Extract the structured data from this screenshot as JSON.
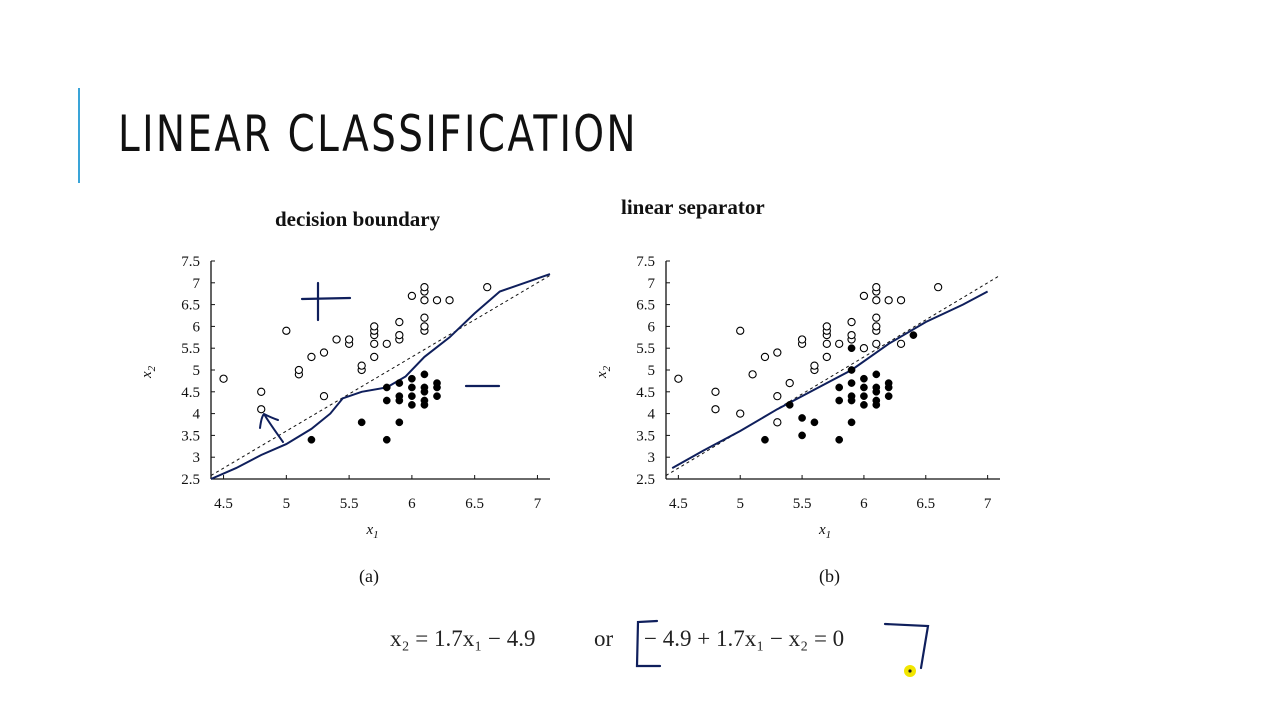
{
  "slide": {
    "title": "LINEAR CLASSIFICATION",
    "accent_color": "#3aa4d8",
    "ink_color": "#0f1f5c",
    "cursor_color": "#f2e600"
  },
  "chart_data": [
    {
      "type": "scatter",
      "title": "decision boundary",
      "caption": "(a)",
      "xlabel": "x1",
      "ylabel": "x2",
      "xlim": [
        4.4,
        7.1
      ],
      "ylim": [
        2.5,
        7.5
      ],
      "xticks": [
        "4.5",
        "5",
        "5.5",
        "6",
        "6.5",
        "7"
      ],
      "yticks": [
        "2.5",
        "3",
        "3.5",
        "4",
        "4.5",
        "5",
        "5.5",
        "6",
        "6.5",
        "7",
        "7.5"
      ],
      "grid": false,
      "series": [
        {
          "marker": "open-circle",
          "points": [
            [
              4.5,
              4.8
            ],
            [
              4.8,
              4.5
            ],
            [
              4.8,
              4.1
            ],
            [
              5.0,
              5.9
            ],
            [
              5.1,
              4.9
            ],
            [
              5.1,
              5.0
            ],
            [
              5.2,
              5.3
            ],
            [
              5.3,
              5.4
            ],
            [
              5.3,
              4.4
            ],
            [
              5.4,
              5.7
            ],
            [
              5.5,
              5.6
            ],
            [
              5.5,
              5.7
            ],
            [
              5.6,
              5.0
            ],
            [
              5.6,
              5.1
            ],
            [
              5.7,
              5.3
            ],
            [
              5.7,
              5.6
            ],
            [
              5.7,
              5.8
            ],
            [
              5.7,
              5.9
            ],
            [
              5.7,
              6.0
            ],
            [
              5.8,
              5.6
            ],
            [
              5.9,
              5.7
            ],
            [
              5.9,
              5.8
            ],
            [
              5.9,
              6.1
            ],
            [
              6.0,
              6.7
            ],
            [
              6.1,
              5.9
            ],
            [
              6.1,
              6.0
            ],
            [
              6.1,
              6.2
            ],
            [
              6.1,
              6.6
            ],
            [
              6.1,
              6.8
            ],
            [
              6.1,
              6.9
            ],
            [
              6.2,
              6.6
            ],
            [
              6.3,
              6.6
            ],
            [
              6.6,
              6.9
            ]
          ]
        },
        {
          "marker": "filled-circle",
          "points": [
            [
              5.2,
              3.4
            ],
            [
              5.6,
              3.8
            ],
            [
              5.8,
              3.4
            ],
            [
              5.8,
              4.3
            ],
            [
              5.8,
              4.6
            ],
            [
              5.9,
              3.8
            ],
            [
              5.9,
              4.3
            ],
            [
              5.9,
              4.4
            ],
            [
              5.9,
              4.7
            ],
            [
              6.0,
              4.2
            ],
            [
              6.0,
              4.4
            ],
            [
              6.0,
              4.6
            ],
            [
              6.0,
              4.8
            ],
            [
              6.1,
              4.2
            ],
            [
              6.1,
              4.3
            ],
            [
              6.1,
              4.5
            ],
            [
              6.1,
              4.6
            ],
            [
              6.1,
              4.9
            ],
            [
              6.2,
              4.4
            ],
            [
              6.2,
              4.6
            ],
            [
              6.2,
              4.7
            ]
          ]
        }
      ],
      "dashed_line": {
        "slope": 1.7,
        "intercept": -4.9
      },
      "boundary_curve": [
        [
          4.4,
          2.5
        ],
        [
          4.6,
          2.75
        ],
        [
          4.8,
          3.05
        ],
        [
          5.0,
          3.3
        ],
        [
          5.2,
          3.65
        ],
        [
          5.35,
          4.0
        ],
        [
          5.45,
          4.35
        ],
        [
          5.6,
          4.5
        ],
        [
          5.8,
          4.6
        ],
        [
          5.95,
          4.85
        ],
        [
          6.1,
          5.3
        ],
        [
          6.3,
          5.75
        ],
        [
          6.5,
          6.3
        ],
        [
          6.7,
          6.8
        ],
        [
          6.9,
          7.0
        ],
        [
          7.1,
          7.2
        ]
      ]
    },
    {
      "type": "scatter",
      "title": "linear separator",
      "caption": "(b)",
      "xlabel": "x1",
      "ylabel": "x2",
      "xlim": [
        4.4,
        7.1
      ],
      "ylim": [
        2.5,
        7.5
      ],
      "xticks": [
        "4.5",
        "5",
        "5.5",
        "6",
        "6.5",
        "7"
      ],
      "yticks": [
        "2.5",
        "3",
        "3.5",
        "4",
        "4.5",
        "5",
        "5.5",
        "6",
        "6.5",
        "7",
        "7.5"
      ],
      "grid": false,
      "series": [
        {
          "marker": "open-circle",
          "points": [
            [
              4.5,
              4.8
            ],
            [
              4.8,
              4.5
            ],
            [
              4.8,
              4.1
            ],
            [
              5.0,
              4.0
            ],
            [
              5.0,
              5.9
            ],
            [
              5.1,
              4.9
            ],
            [
              5.2,
              5.3
            ],
            [
              5.3,
              5.4
            ],
            [
              5.3,
              4.4
            ],
            [
              5.3,
              3.8
            ],
            [
              5.4,
              4.7
            ],
            [
              5.5,
              5.6
            ],
            [
              5.5,
              5.7
            ],
            [
              5.6,
              5.0
            ],
            [
              5.6,
              5.1
            ],
            [
              5.7,
              5.3
            ],
            [
              5.7,
              5.6
            ],
            [
              5.7,
              5.8
            ],
            [
              5.7,
              5.9
            ],
            [
              5.7,
              6.0
            ],
            [
              5.8,
              5.6
            ],
            [
              5.9,
              5.7
            ],
            [
              5.9,
              5.8
            ],
            [
              5.9,
              6.1
            ],
            [
              6.0,
              5.5
            ],
            [
              6.0,
              6.7
            ],
            [
              6.1,
              5.6
            ],
            [
              6.1,
              5.9
            ],
            [
              6.1,
              6.0
            ],
            [
              6.1,
              6.2
            ],
            [
              6.1,
              6.6
            ],
            [
              6.1,
              6.8
            ],
            [
              6.1,
              6.9
            ],
            [
              6.2,
              6.6
            ],
            [
              6.3,
              5.6
            ],
            [
              6.3,
              6.6
            ],
            [
              6.6,
              6.9
            ]
          ]
        },
        {
          "marker": "filled-circle",
          "points": [
            [
              5.2,
              3.4
            ],
            [
              5.4,
              4.2
            ],
            [
              5.5,
              3.5
            ],
            [
              5.5,
              3.9
            ],
            [
              5.6,
              3.8
            ],
            [
              5.8,
              3.4
            ],
            [
              5.8,
              4.3
            ],
            [
              5.8,
              4.6
            ],
            [
              5.9,
              3.8
            ],
            [
              5.9,
              4.3
            ],
            [
              5.9,
              4.4
            ],
            [
              5.9,
              4.7
            ],
            [
              5.9,
              5.0
            ],
            [
              5.9,
              5.5
            ],
            [
              6.0,
              4.2
            ],
            [
              6.0,
              4.4
            ],
            [
              6.0,
              4.6
            ],
            [
              6.0,
              4.8
            ],
            [
              6.1,
              4.2
            ],
            [
              6.1,
              4.3
            ],
            [
              6.1,
              4.5
            ],
            [
              6.1,
              4.6
            ],
            [
              6.1,
              4.9
            ],
            [
              6.2,
              4.4
            ],
            [
              6.2,
              4.6
            ],
            [
              6.2,
              4.7
            ],
            [
              6.4,
              5.8
            ]
          ]
        }
      ],
      "dashed_line": {
        "slope": 1.7,
        "intercept": -4.9
      },
      "boundary_curve": [
        [
          4.45,
          2.75
        ],
        [
          4.7,
          3.15
        ],
        [
          5.0,
          3.6
        ],
        [
          5.3,
          4.1
        ],
        [
          5.6,
          4.55
        ],
        [
          5.9,
          5.0
        ],
        [
          6.2,
          5.6
        ],
        [
          6.5,
          6.1
        ],
        [
          6.8,
          6.5
        ],
        [
          7.0,
          6.8
        ]
      ]
    }
  ],
  "formula": {
    "left": "x₂ = 1.7x₁ − 4.9",
    "or": "or",
    "right": "− 4.9 + 1.7x₁ − x₂ = 0"
  }
}
